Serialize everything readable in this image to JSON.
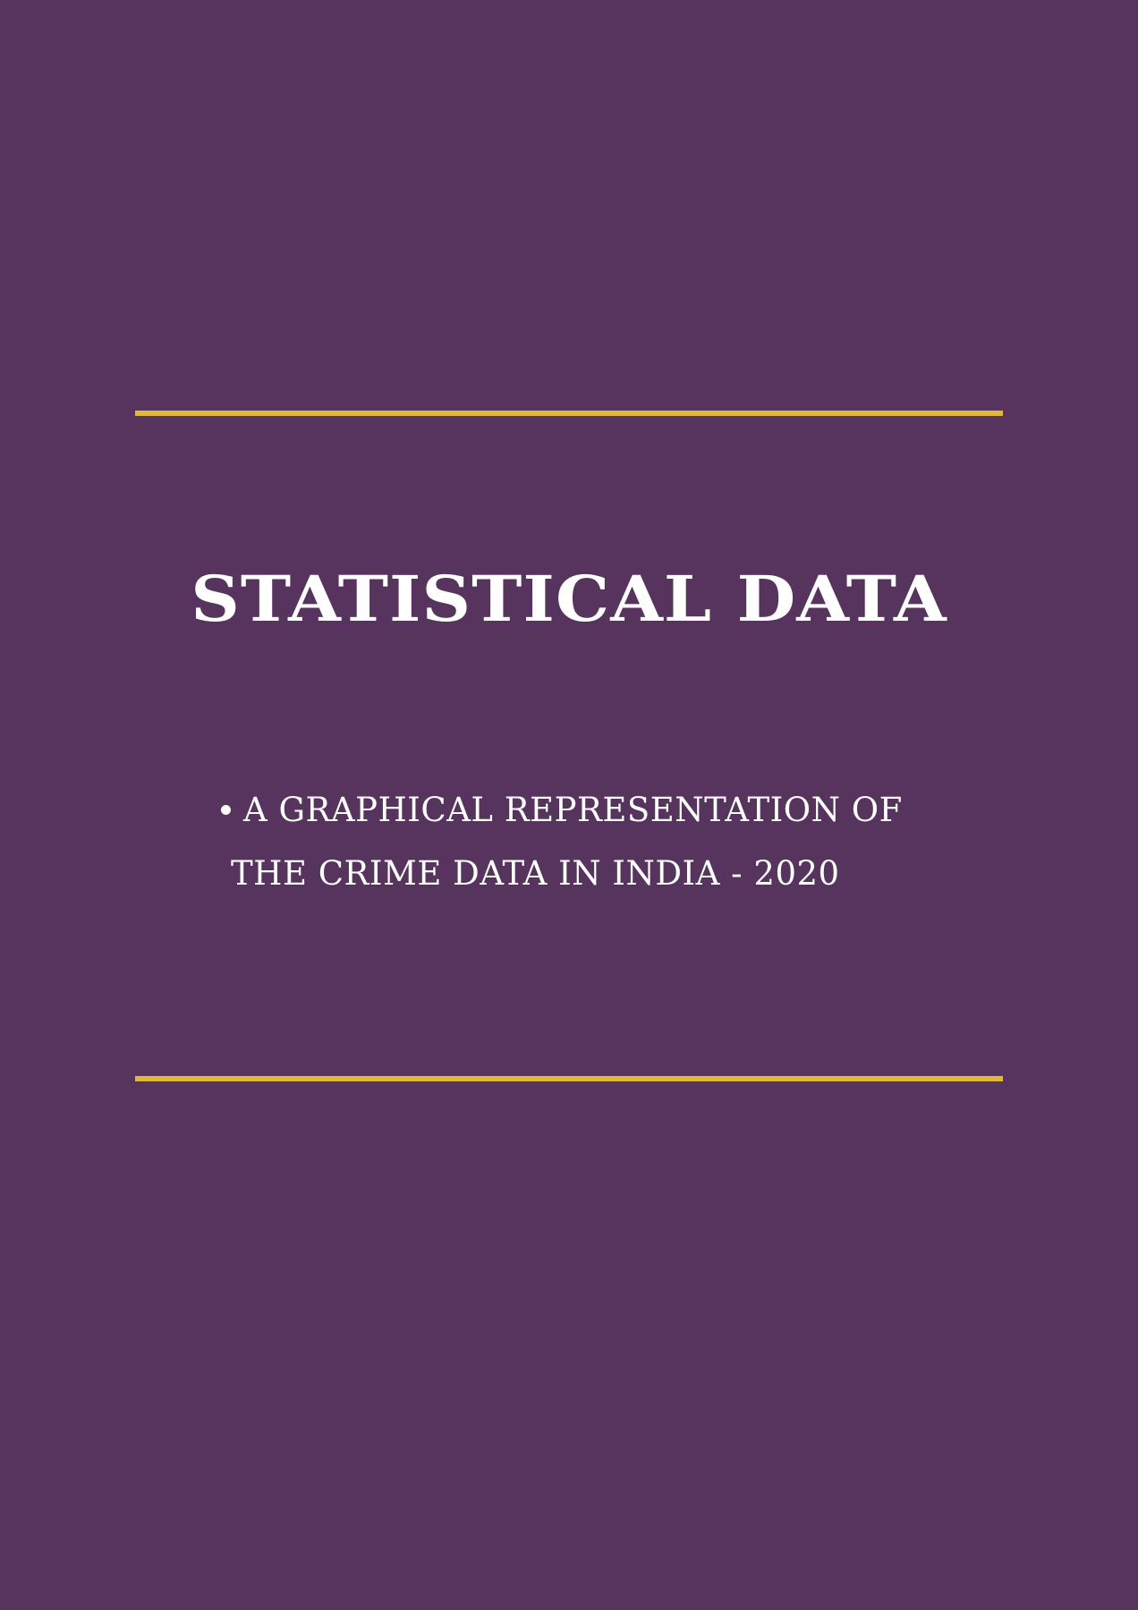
{
  "colors": {
    "background": "#56345d",
    "accent_rule": "#e0b93b",
    "text": "#ffffff"
  },
  "cover": {
    "title": "STATISTICAL DATA",
    "subtitle_line1": "A  GRAPHICAL REPRESENTATION OF",
    "subtitle_line2": "THE CRIME DATA IN INDIA - 2020"
  }
}
